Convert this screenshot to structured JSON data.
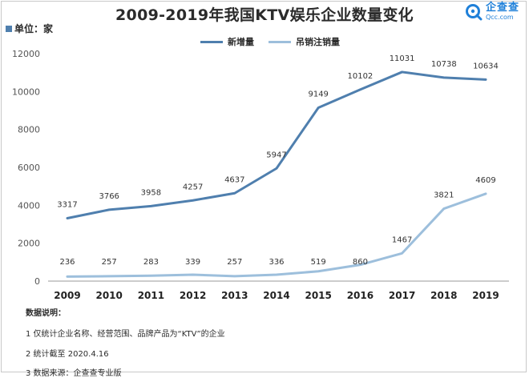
{
  "header": {
    "title": "2009-2019年我国KTV娱乐企业数量变化",
    "unit_label": "单位：家",
    "logo_cn": "企查查",
    "logo_en": "Qcc.com"
  },
  "colors": {
    "new_series": "#4f7fae",
    "cancel_series": "#9dbfdc",
    "logo": "#1f80d9",
    "axis": "#9a9a9a"
  },
  "chart_data": {
    "type": "line",
    "title": "2009-2019年我国KTV娱乐企业数量变化",
    "xlabel": "",
    "ylabel": "",
    "categories": [
      "2009",
      "2010",
      "2011",
      "2012",
      "2013",
      "2014",
      "2015",
      "2016",
      "2017",
      "2018",
      "2019"
    ],
    "yticks": [
      "0",
      "2000",
      "4000",
      "6000",
      "8000",
      "10000",
      "12000"
    ],
    "ylim": [
      0,
      12000
    ],
    "grid": false,
    "legend_position": "top-center",
    "series": [
      {
        "name": "新增量",
        "values": [
          3317,
          3766,
          3958,
          4257,
          4637,
          5947,
          9149,
          10102,
          11031,
          10738,
          10634
        ]
      },
      {
        "name": "吊销注销量",
        "values": [
          236,
          257,
          283,
          339,
          257,
          336,
          519,
          860,
          1467,
          3821,
          4609
        ]
      }
    ]
  },
  "notes": {
    "heading": "数据说明：",
    "items": [
      "1 仅统计企业名称、经营范围、品牌产品为“KTV”的企业",
      "2 统计截至 2020.4.16",
      "3 数据来源：企查查专业版"
    ]
  }
}
